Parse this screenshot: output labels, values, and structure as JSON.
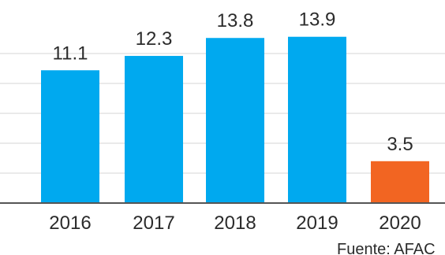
{
  "chart_data": {
    "type": "bar",
    "categories": [
      "2016",
      "2017",
      "2018",
      "2019",
      "2020"
    ],
    "values": [
      11.1,
      12.3,
      13.8,
      13.9,
      3.5
    ],
    "data_labels": [
      "11.1",
      "12.3",
      "13.8",
      "13.9",
      "3.5"
    ],
    "title": "",
    "xlabel": "",
    "ylabel": "",
    "ylim": [
      0,
      15
    ],
    "grid": true,
    "legend": "none",
    "colors": {
      "default": "#00A9EF",
      "highlight": "#F26522"
    },
    "highlight_index": 4,
    "source": "Fuente: AFAC"
  }
}
